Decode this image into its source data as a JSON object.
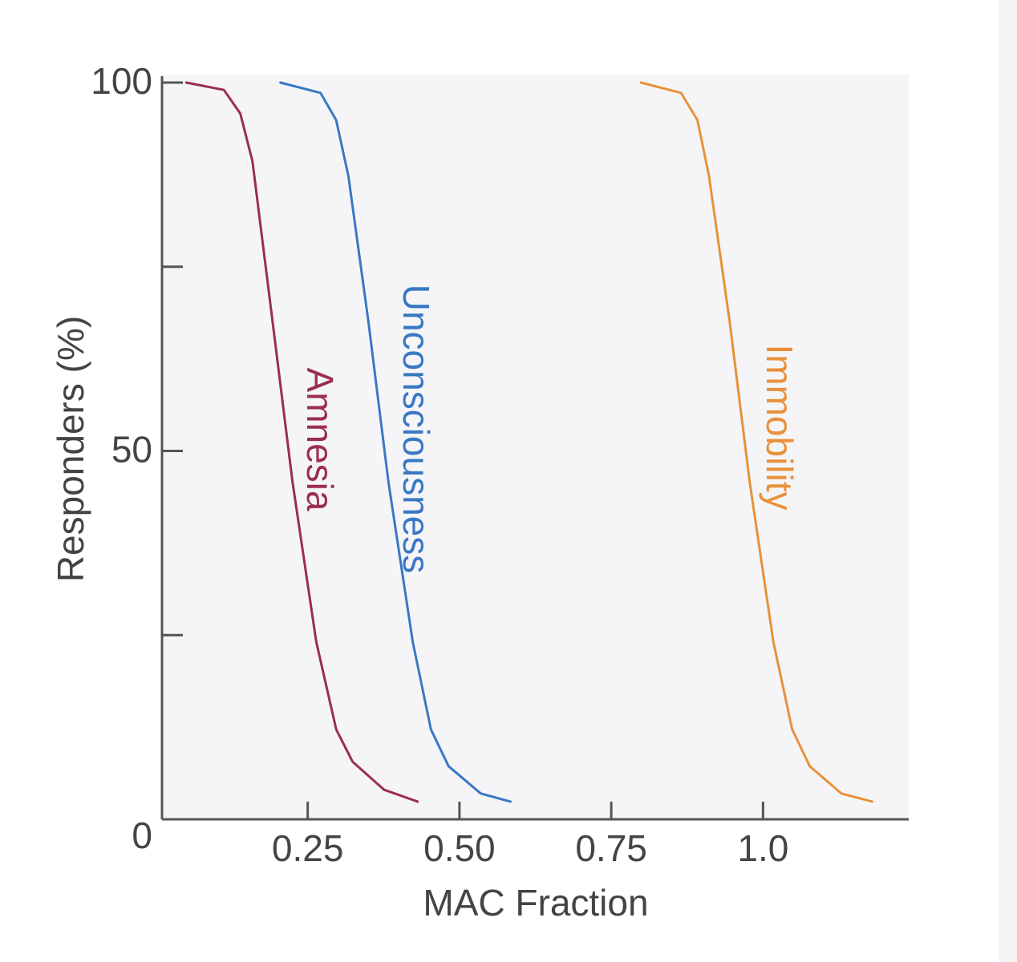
{
  "chart_data": {
    "type": "line",
    "x_label": "MAC Fraction",
    "y_label": "Responders (%)",
    "xlim": [
      0.01,
      1.24
    ],
    "ylim": [
      0,
      100
    ],
    "xticks": [
      0.25,
      {
        "value": 0.5,
        "label": "0.50"
      },
      0.75,
      {
        "value": 1,
        "label": "1.0"
      }
    ],
    "yticks": [
      0,
      50,
      100
    ],
    "yminor_ticks": [
      25,
      75
    ],
    "background": "#f5f5f8",
    "series": [
      {
        "name": "Amnesia",
        "color": "#9b2d52",
        "x": [
          0.05,
          0.112,
          0.139,
          0.159,
          0.192,
          0.225,
          0.264,
          0.297,
          0.324,
          0.376,
          0.431
        ],
        "values": [
          100,
          99,
          95.8,
          89.3,
          67.6,
          45.8,
          24.1,
          12.2,
          7.8,
          4.0,
          2.4
        ]
      },
      {
        "name": "Unconsciousness",
        "color": "#3a78c4",
        "x": [
          0.205,
          0.271,
          0.297,
          0.317,
          0.35,
          0.383,
          0.423,
          0.453,
          0.482,
          0.535,
          0.584
        ],
        "values": [
          100,
          98.6,
          94.9,
          87.3,
          67.6,
          45.8,
          24.1,
          12.2,
          7.2,
          3.5,
          2.4
        ]
      },
      {
        "name": "Immobility",
        "color": "#e8913a",
        "x": [
          0.799,
          0.865,
          0.892,
          0.911,
          0.945,
          0.978,
          1.017,
          1.048,
          1.077,
          1.129,
          1.18
        ],
        "values": [
          100,
          98.6,
          94.9,
          87.3,
          67.6,
          45.8,
          24.1,
          12.2,
          7.2,
          3.5,
          2.4
        ]
      }
    ]
  }
}
